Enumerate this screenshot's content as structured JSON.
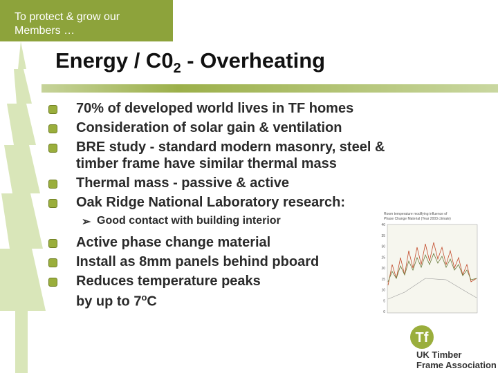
{
  "header": {
    "tagline": [
      "To protect & grow our",
      "Members …"
    ]
  },
  "title": {
    "main": "Energy / C0",
    "subscript": "2",
    "rest": " - Overheating"
  },
  "bullets": [
    {
      "lines": [
        "70% of developed world lives in TF homes"
      ]
    },
    {
      "lines": [
        "Consideration of solar gain & ventilation"
      ]
    },
    {
      "lines": [
        "BRE study - standard modern masonry, steel &",
        "timber frame have similar thermal mass"
      ]
    },
    {
      "lines": [
        "Thermal mass - passive & active"
      ]
    },
    {
      "lines": [
        "Oak Ridge National Laboratory research:"
      ]
    }
  ],
  "sub_bullet": "Good contact with building interior",
  "bullets2": [
    {
      "lines": [
        "Active phase change material"
      ]
    },
    {
      "lines": [
        "Install as 8mm panels behind pboard"
      ]
    },
    {
      "lines": [
        "Reduces temperature peaks"
      ]
    }
  ],
  "last_line": {
    "text": "by up to 7",
    "superscript": "o",
    "unit": "C"
  },
  "figure": {
    "title": [
      "Room temperature modifying influence of",
      "Phase Change Material (Year 2003 climate)"
    ],
    "yticks": [
      "40",
      "35",
      "30",
      "25",
      "20",
      "15",
      "10",
      "5",
      "0"
    ]
  },
  "logo": {
    "mark": "Tf",
    "lines": [
      "UK Timber",
      "Frame Association"
    ]
  }
}
